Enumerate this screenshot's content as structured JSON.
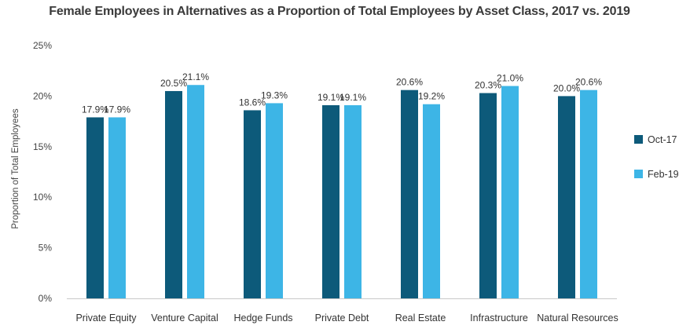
{
  "chart_data": {
    "type": "bar",
    "title": "Female Employees in Alternatives as a Proportion of Total Employees by Asset Class, 2017 vs. 2019",
    "ylabel": "Proportion of Total Employees",
    "xlabel": "",
    "categories": [
      "Private Equity",
      "Venture Capital",
      "Hedge Funds",
      "Private Debt",
      "Real Estate",
      "Infrastructure",
      "Natural Resources"
    ],
    "series": [
      {
        "name": "Oct-17",
        "color": "#0d5a7a",
        "values": [
          17.9,
          20.5,
          18.6,
          19.1,
          20.6,
          20.3,
          20.0
        ],
        "labels": [
          "17.9%",
          "20.5%",
          "18.6%",
          "19.1%",
          "20.6%",
          "20.3%",
          "20.0%"
        ]
      },
      {
        "name": "Feb-19",
        "color": "#3db5e6",
        "values": [
          17.9,
          21.1,
          19.3,
          19.1,
          19.2,
          21.0,
          20.6
        ],
        "labels": [
          "17.9%",
          "21.1%",
          "19.3%",
          "19.1%",
          "19.2%",
          "21.0%",
          "20.6%"
        ]
      }
    ],
    "ylim": [
      0,
      25
    ],
    "yticks": [
      0,
      5,
      10,
      15,
      20,
      25
    ],
    "ytick_labels": [
      "0%",
      "5%",
      "10%",
      "15%",
      "20%",
      "25%"
    ],
    "grid": false,
    "legend_position": "right"
  }
}
